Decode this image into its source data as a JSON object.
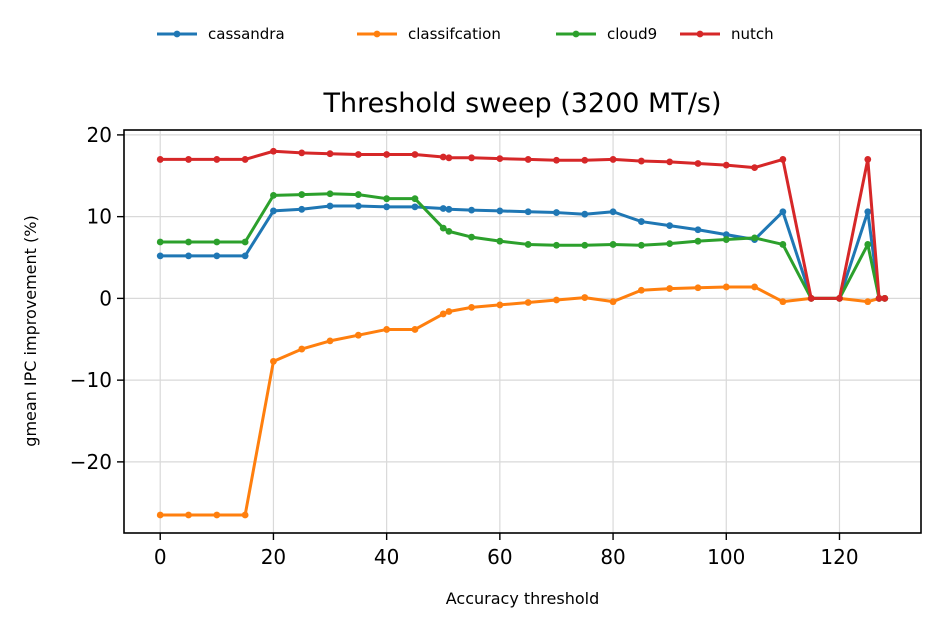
{
  "chart_data": {
    "type": "line",
    "title": "Threshold sweep (3200 MT/s)",
    "xlabel": "Accuracy threshold",
    "ylabel": "gmean IPC improvement (%)",
    "xlim": [
      -6.4,
      134.4
    ],
    "ylim": [
      -28.7,
      20.6
    ],
    "xticks": [
      0,
      20,
      40,
      60,
      80,
      100,
      120
    ],
    "yticks": [
      20,
      10,
      0,
      -10,
      -20
    ],
    "xtick_labels": [
      "0",
      "20",
      "40",
      "60",
      "80",
      "100",
      "120"
    ],
    "ytick_labels": [
      "20",
      "10",
      "0",
      "−10",
      "−20"
    ],
    "grid": true,
    "legend_position": "top-center, above plot",
    "x": [
      0,
      5,
      10,
      15,
      20,
      25,
      30,
      35,
      40,
      45,
      50,
      51,
      55,
      60,
      65,
      70,
      75,
      80,
      85,
      90,
      95,
      100,
      105,
      110,
      115,
      120,
      125,
      127,
      128
    ],
    "series": [
      {
        "name": "cassandra",
        "color": "#1f77b4",
        "values": [
          5.2,
          5.2,
          5.2,
          5.2,
          10.7,
          10.9,
          11.3,
          11.3,
          11.2,
          11.2,
          11.0,
          10.9,
          10.8,
          10.7,
          10.6,
          10.5,
          10.3,
          10.6,
          9.4,
          8.9,
          8.4,
          7.8,
          7.2,
          10.6,
          0.0,
          0.0,
          10.6,
          0.0,
          0.0
        ]
      },
      {
        "name": "classifcation",
        "color": "#ff7f0e",
        "values": [
          -26.5,
          -26.5,
          -26.5,
          -26.5,
          -7.7,
          -6.2,
          -5.2,
          -4.5,
          -3.8,
          -3.8,
          -1.9,
          -1.6,
          -1.1,
          -0.8,
          -0.5,
          -0.2,
          0.1,
          -0.4,
          1.0,
          1.2,
          1.3,
          1.4,
          1.4,
          -0.4,
          0.0,
          0.0,
          -0.4,
          0.0,
          0.0
        ]
      },
      {
        "name": "cloud9",
        "color": "#2ca02c",
        "values": [
          6.9,
          6.9,
          6.9,
          6.9,
          12.6,
          12.7,
          12.8,
          12.7,
          12.2,
          12.2,
          8.6,
          8.2,
          7.5,
          7.0,
          6.6,
          6.5,
          6.5,
          6.6,
          6.5,
          6.7,
          7.0,
          7.2,
          7.4,
          6.6,
          0.0,
          0.0,
          6.6,
          0.0,
          0.0
        ]
      },
      {
        "name": "nutch",
        "color": "#d62728",
        "values": [
          17.0,
          17.0,
          17.0,
          17.0,
          18.0,
          17.8,
          17.7,
          17.6,
          17.6,
          17.6,
          17.3,
          17.2,
          17.2,
          17.1,
          17.0,
          16.9,
          16.9,
          17.0,
          16.8,
          16.7,
          16.5,
          16.3,
          16.0,
          17.0,
          0.0,
          0.0,
          17.0,
          0.0,
          0.0
        ]
      }
    ]
  }
}
